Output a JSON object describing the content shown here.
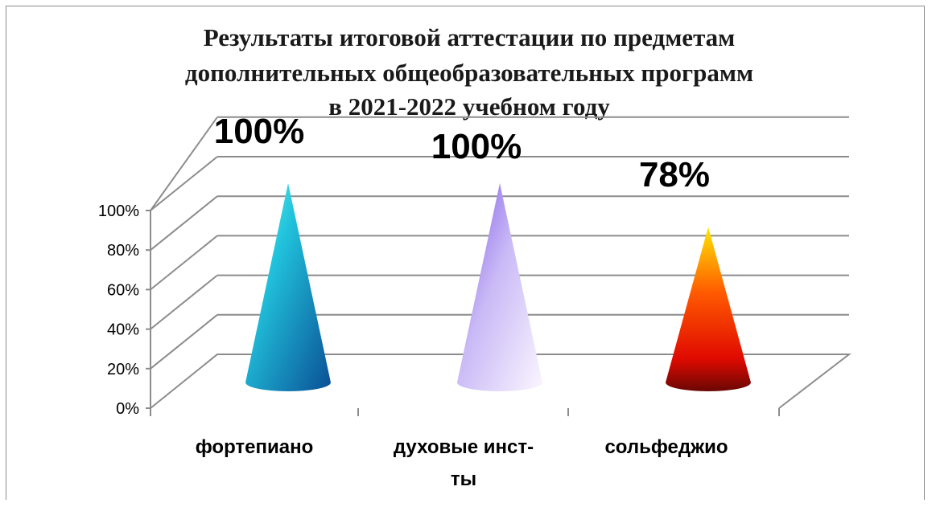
{
  "chart_data": {
    "type": "bar",
    "subtype": "3d-cone",
    "title_lines": [
      "Результаты итоговой аттестации по предметам",
      "дополнительных общеобразовательных программ",
      "в 2021-2022 учебном году"
    ],
    "categories": [
      {
        "lines": [
          "фортепиано"
        ]
      },
      {
        "lines": [
          "духовые инст-",
          "ты"
        ]
      },
      {
        "lines": [
          "сольфеджио"
        ]
      }
    ],
    "values": [
      100,
      100,
      78
    ],
    "data_labels": [
      "100%",
      "100%",
      "78%"
    ],
    "ylim": [
      0,
      100
    ],
    "yticks": [
      "0%",
      "20%",
      "40%",
      "60%",
      "80%",
      "100%"
    ],
    "grid": true,
    "legend": "none",
    "colors": {
      "cone_1": [
        "#0b5f9e",
        "#1fb6d8",
        "#3ff0e6"
      ],
      "cone_2": [
        "#6a3fd6",
        "#b8a6f4",
        "#f2e9ff"
      ],
      "cone_3": [
        "#7a0a05",
        "#ff2b00",
        "#ffd400"
      ],
      "grid": "#8c8c8c"
    }
  }
}
